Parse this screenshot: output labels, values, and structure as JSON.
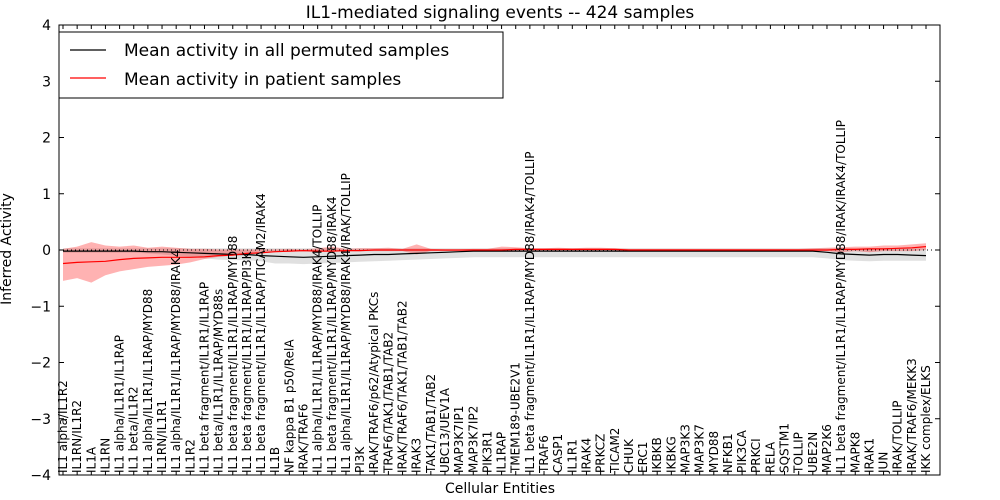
{
  "chart_data": {
    "type": "line",
    "title": "IL1-mediated signaling events -- 424 samples",
    "xlabel": "Cellular Entities",
    "ylabel": "Inferred Activity",
    "ylim": [
      -4,
      4
    ],
    "yticks": [
      -4,
      -3,
      -2,
      -1,
      0,
      1,
      2,
      3,
      4
    ],
    "ytick_labels": [
      "−4",
      "−3",
      "−2",
      "−1",
      "0",
      "1",
      "2",
      "3",
      "4"
    ],
    "grid": false,
    "legend_position": "top-left",
    "categories": [
      "IL1 alpha/IL1R2",
      "IL1RN/IL1R2",
      "IL1A",
      "IL1RN",
      "IL1 alpha/IL1R1/IL1RAP",
      "IL1 beta/IL1R2",
      "IL1 alpha/IL1R1/IL1RAP/MYD88",
      "IL1RN/IL1R1",
      "IL1 alpha/IL1R1/IL1RAP/MYD88/IRAK4",
      "IL1R2",
      "IL1 beta fragment/IL1R1/IL1RAP",
      "IL1 beta/IL1R1/IL1RAP/MYD88s",
      "IL1 beta fragment/IL1R1/IL1RAP/MYD88",
      "IL1 beta fragment/IL1R1/IL1RAP/PI3K",
      "IL1 beta fragment/IL1R1/IL1RAP/TICAM2/IRAK4",
      "IL1B",
      "NF kappa B1 p50/RelA",
      "IRAK/TRAF6",
      "IL1 alpha/IL1R1/IL1RAP/MYD88/IRAK4/TOLLIP",
      "IL1 beta fragment/IL1R1/IL1RAP/MYD88/IRAK4",
      "IL1 alpha/IL1R1/IL1RAP/MYD88/IRAK4/IRAK/TOLLIP",
      "PI3K",
      "IRAK/TRAF6/p62/Atypical PKCs",
      "TRAF6/TAK1/TAB1/TAB2",
      "IRAK/TRAF6/TAK1/TAB1/TAB2",
      "IRAK3",
      "TAK1/TAB1/TAB2",
      "UBC13/UEV1A",
      "MAP3K7IP1",
      "MAP3K7IP2",
      "PIK3R1",
      "IL1RAP",
      "TMEM189-UBE2V1",
      "IL1 beta fragment/IL1R1/IL1RAP/MYD88/IRAK4/TOLLIP",
      "TRAF6",
      "CASP1",
      "IL1R1",
      "IRAK4",
      "PRKCZ",
      "TICAM2",
      "CHUK",
      "ERC1",
      "IKBKB",
      "IKBKG",
      "MAP3K3",
      "MAP3K7",
      "MYD88",
      "NFKB1",
      "PIK3CA",
      "PRKCI",
      "RELA",
      "SQSTM1",
      "TOLLIP",
      "UBE2N",
      "MAP2K6",
      "IL1 beta fragment/IL1R1/IL1RAP/MYD88/IRAK/IRAK4/TOLLIP",
      "MAPK8",
      "IRAK1",
      "JUN",
      "IRAK/TOLLIP",
      "IRAK/TRAF6/MEKK3",
      "IKK complex/ELKS"
    ],
    "series": [
      {
        "name": "Mean activity in all permuted samples",
        "color": "#000000",
        "values": [
          -0.02,
          -0.02,
          -0.02,
          -0.02,
          -0.02,
          -0.02,
          -0.03,
          -0.03,
          -0.04,
          -0.05,
          -0.06,
          -0.07,
          -0.08,
          -0.08,
          -0.1,
          -0.11,
          -0.12,
          -0.13,
          -0.12,
          -0.11,
          -0.1,
          -0.09,
          -0.08,
          -0.08,
          -0.07,
          -0.06,
          -0.05,
          -0.04,
          -0.03,
          -0.02,
          -0.02,
          -0.02,
          -0.02,
          -0.02,
          -0.02,
          -0.02,
          -0.02,
          -0.02,
          -0.02,
          -0.02,
          -0.02,
          -0.02,
          -0.02,
          -0.02,
          -0.02,
          -0.02,
          -0.02,
          -0.02,
          -0.02,
          -0.02,
          -0.02,
          -0.02,
          -0.02,
          -0.02,
          -0.04,
          -0.07,
          -0.08,
          -0.09,
          -0.08,
          -0.08,
          -0.09,
          -0.1
        ],
        "band_low": [
          -0.05,
          -0.05,
          -0.05,
          -0.05,
          -0.05,
          -0.05,
          -0.06,
          -0.08,
          -0.1,
          -0.12,
          -0.15,
          -0.17,
          -0.18,
          -0.18,
          -0.2,
          -0.24,
          -0.24,
          -0.25,
          -0.24,
          -0.23,
          -0.22,
          -0.21,
          -0.2,
          -0.19,
          -0.18,
          -0.17,
          -0.16,
          -0.15,
          -0.14,
          -0.13,
          -0.13,
          -0.13,
          -0.13,
          -0.13,
          -0.13,
          -0.13,
          -0.13,
          -0.13,
          -0.13,
          -0.13,
          -0.13,
          -0.13,
          -0.13,
          -0.13,
          -0.13,
          -0.13,
          -0.13,
          -0.13,
          -0.13,
          -0.13,
          -0.13,
          -0.13,
          -0.13,
          -0.13,
          -0.15,
          -0.18,
          -0.19,
          -0.2,
          -0.19,
          -0.19,
          -0.19,
          -0.19
        ],
        "band_high": [
          0.03,
          0.03,
          0.03,
          0.03,
          0.03,
          0.03,
          0.03,
          0.03,
          0.03,
          0.03,
          0.03,
          0.03,
          0.03,
          0.03,
          0.03,
          0.03,
          0.03,
          0.03,
          0.03,
          0.03,
          0.03,
          0.03,
          0.03,
          0.03,
          0.03,
          0.03,
          0.03,
          0.03,
          0.03,
          0.03,
          0.03,
          0.03,
          0.03,
          0.03,
          0.03,
          0.03,
          0.03,
          0.03,
          0.03,
          0.03,
          0.03,
          0.03,
          0.03,
          0.03,
          0.03,
          0.03,
          0.03,
          0.03,
          0.03,
          0.03,
          0.03,
          0.03,
          0.03,
          0.03,
          0.03,
          0.03,
          0.03,
          0.03,
          0.03,
          0.03,
          0.03,
          0.03
        ]
      },
      {
        "name": "Mean activity in patient samples",
        "color": "#ff0000",
        "values": [
          -0.24,
          -0.22,
          -0.21,
          -0.2,
          -0.17,
          -0.15,
          -0.14,
          -0.13,
          -0.13,
          -0.13,
          -0.12,
          -0.1,
          -0.09,
          -0.06,
          -0.05,
          -0.03,
          -0.02,
          -0.01,
          -0.02,
          -0.02,
          -0.01,
          -0.01,
          0.0,
          0.0,
          0.0,
          0.0,
          0.0,
          0.0,
          0.0,
          0.0,
          0.0,
          0.0,
          0.01,
          0.01,
          0.01,
          0.01,
          0.01,
          0.01,
          0.01,
          0.01,
          0.0,
          0.0,
          0.0,
          0.0,
          0.0,
          0.0,
          0.0,
          0.0,
          0.0,
          0.0,
          0.0,
          0.0,
          0.0,
          0.0,
          0.0,
          0.01,
          0.01,
          0.02,
          0.02,
          0.03,
          0.04,
          0.06
        ],
        "band_low": [
          -0.55,
          -0.5,
          -0.58,
          -0.45,
          -0.38,
          -0.34,
          -0.3,
          -0.28,
          -0.26,
          -0.22,
          -0.16,
          -0.12,
          -0.1,
          -0.08,
          -0.06,
          -0.04,
          -0.03,
          -0.02,
          -0.03,
          -0.03,
          -0.02,
          -0.02,
          -0.02,
          -0.02,
          -0.02,
          -0.08,
          -0.02,
          -0.02,
          -0.02,
          -0.02,
          -0.02,
          -0.02,
          -0.02,
          -0.02,
          -0.02,
          -0.02,
          -0.02,
          -0.02,
          -0.02,
          -0.02,
          -0.02,
          -0.02,
          -0.02,
          -0.02,
          -0.02,
          -0.02,
          -0.02,
          -0.02,
          -0.02,
          -0.02,
          -0.02,
          -0.02,
          -0.02,
          -0.02,
          -0.02,
          -0.04,
          -0.02,
          -0.04,
          -0.02,
          -0.02,
          -0.02,
          0.0
        ],
        "band_high": [
          0.02,
          0.06,
          0.14,
          0.08,
          0.06,
          0.08,
          0.04,
          0.06,
          0.04,
          0.02,
          0.02,
          0.01,
          0.01,
          0.01,
          0.01,
          0.01,
          0.02,
          0.01,
          0.03,
          0.06,
          0.02,
          0.03,
          0.03,
          0.04,
          0.02,
          0.1,
          0.02,
          0.01,
          0.01,
          0.02,
          0.02,
          0.06,
          0.05,
          0.03,
          0.03,
          0.04,
          0.03,
          0.04,
          0.04,
          0.03,
          0.02,
          0.02,
          0.02,
          0.02,
          0.02,
          0.02,
          0.02,
          0.02,
          0.02,
          0.02,
          0.02,
          0.02,
          0.02,
          0.03,
          0.04,
          0.05,
          0.06,
          0.06,
          0.08,
          0.08,
          0.1,
          0.12
        ]
      }
    ]
  }
}
